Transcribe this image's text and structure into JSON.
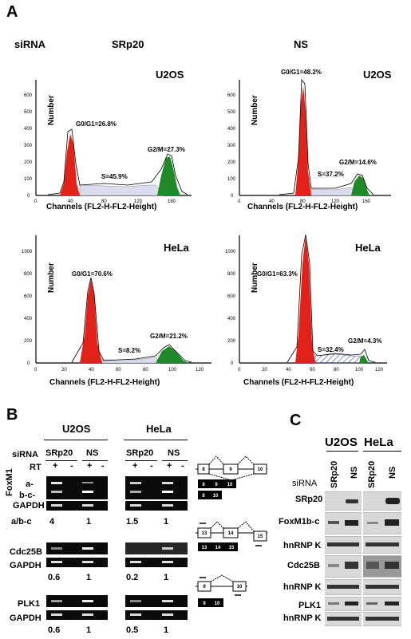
{
  "panelA": {
    "letter": "A",
    "sirna_label": "siRNA",
    "col_labels": [
      "SRp20",
      "NS"
    ],
    "axis_number": "Number",
    "axis_channels": "Channels (FL2-H-FL2-Height)",
    "plots": [
      {
        "cell": "U2OS",
        "g0g1": "G0/G1=26.8%",
        "s": "S=45.9%",
        "g2m": "G2/M=27.3%",
        "yticks": [
          "0",
          "100",
          "200",
          "300",
          "400",
          "500",
          "600"
        ],
        "xticks": [
          "0",
          "40",
          "80",
          "120",
          "160"
        ]
      },
      {
        "cell": "U2OS",
        "g0g1": "G0/G1=48.2%",
        "s": "S=37.2%",
        "g2m": "G2/M=14.6%",
        "yticks": [
          "0",
          "100",
          "200",
          "300",
          "400",
          "500",
          "600"
        ],
        "xticks": [
          "0",
          "40",
          "80",
          "120",
          "160"
        ]
      },
      {
        "cell": "HeLa",
        "g0g1": "G0/G1=70.6%",
        "s": "S=8.2%",
        "g2m": "G2/M=21.2%",
        "yticks": [
          "0",
          "200",
          "400",
          "600",
          "800",
          "1000"
        ],
        "xticks": [
          "0",
          "20",
          "40",
          "60",
          "80",
          "100",
          "120"
        ]
      },
      {
        "cell": "HeLa",
        "g0g1": "G0/G1=63.3%",
        "s": "S=32.4%",
        "g2m": "G2/M=4.3%",
        "yticks": [
          "0",
          "200",
          "400",
          "600",
          "800",
          "1000"
        ],
        "xticks": [
          "0",
          "20",
          "40",
          "60",
          "80",
          "100",
          "120"
        ]
      }
    ]
  },
  "panelB": {
    "letter": "B",
    "cells": [
      "U2OS",
      "HeLa"
    ],
    "sirna_label": "siRNA",
    "conditions": [
      "SRp20",
      "NS"
    ],
    "rt_label": "RT",
    "rt_signs": [
      "+",
      "-",
      "+",
      "-"
    ],
    "foxm1_label": "FoxM1",
    "band_labels": [
      "a-",
      "b-c-"
    ],
    "gapdh": "GAPDH",
    "ratio_label": "a/b-c",
    "foxm1_ratios": [
      "4",
      "1",
      "1.5",
      "1"
    ],
    "cdc25b_label": "Cdc25B",
    "cdc25b_ratios": [
      "0.6",
      "1",
      "0.2",
      "1"
    ],
    "plk1_label": "PLK1",
    "plk1_ratios": [
      "0.6",
      "1",
      "0.5",
      "1"
    ],
    "exons_foxm1_top": [
      "8",
      "9",
      "10"
    ],
    "exons_foxm1_a": [
      "8",
      "9",
      "10"
    ],
    "exons_foxm1_bc": [
      "8",
      "10"
    ],
    "exons_cdc25b_top": [
      "13",
      "14",
      "15"
    ],
    "exons_cdc25b_bottom": [
      "13",
      "14",
      "15"
    ],
    "exons_plk1_top": [
      "9",
      "10"
    ],
    "exons_plk1_bottom": [
      "9",
      "10"
    ]
  },
  "panelC": {
    "letter": "C",
    "cells": [
      "U2OS",
      "HeLa"
    ],
    "lane_labels": [
      "SRp20",
      "NS",
      "SRp20",
      "NS"
    ],
    "sirna_label": "siRNA",
    "rows": [
      "SRp20",
      "FoxM1b-c",
      "hnRNP K",
      "Cdc25B",
      "hnRNP K",
      "PLK1",
      "hnRNP K"
    ]
  }
}
